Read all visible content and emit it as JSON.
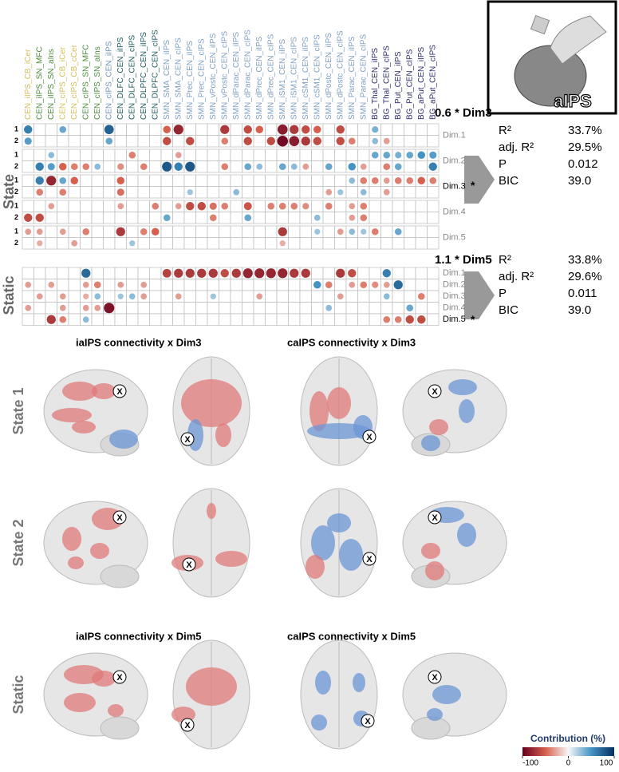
{
  "matrix": {
    "columns": [
      {
        "label": "CEN_iIPS_CB_iCer",
        "color": "#d1c05a"
      },
      {
        "label": "CEN_iIPS_SN_MFC",
        "color": "#4d8a3c"
      },
      {
        "label": "CEN_iIPS_SN_aIns",
        "color": "#4d8a3c"
      },
      {
        "label": "CEN_cIPS_CB_iCer",
        "color": "#d1c05a"
      },
      {
        "label": "CEN_cIPS_CB_cCer",
        "color": "#d1c05a"
      },
      {
        "label": "CEN_cIPS_SN_MFC",
        "color": "#4d8a3c"
      },
      {
        "label": "CEN_cIPS_SN_aIns",
        "color": "#4d8a3c"
      },
      {
        "label": "CEN_cIPS_CEN_iIPS",
        "color": "#6f93b4"
      },
      {
        "label": "CEN_DLFC_CEN_iIPS",
        "color": "#1f5c5c"
      },
      {
        "label": "CEN_DLFC_CEN_cIPS",
        "color": "#1f5c5c"
      },
      {
        "label": "CEN_DLPFC_CEN_iIPS",
        "color": "#1f5c5c"
      },
      {
        "label": "CEN_DLPFC_CEN_cIPS",
        "color": "#1f5c5c"
      },
      {
        "label": "SMN_SMA_CEN_iIPS",
        "color": "#7f9fc0"
      },
      {
        "label": "SMN_SMA_CEN_cIPS",
        "color": "#7f9fc0"
      },
      {
        "label": "SMN_Prec_CEN_iIPS",
        "color": "#7f9fc0"
      },
      {
        "label": "SMN_Prec_CEN_cIPS",
        "color": "#7f9fc0"
      },
      {
        "label": "SMN_vPostc_CEN_iIPS",
        "color": "#7f9fc0"
      },
      {
        "label": "SMN_vPostc_CEN_cIPS",
        "color": "#7f9fc0"
      },
      {
        "label": "SMN_dParac_CEN_iIPS",
        "color": "#7f9fc0"
      },
      {
        "label": "SMN_dParac_CEN_cIPS",
        "color": "#7f9fc0"
      },
      {
        "label": "SMN_dPrec_CEN_iIPS",
        "color": "#7f9fc0"
      },
      {
        "label": "SMN_dPrec_CEN_cIPS",
        "color": "#7f9fc0"
      },
      {
        "label": "SMN_iSM1_CEN_iIPS",
        "color": "#7f9fc0"
      },
      {
        "label": "SMN_iSM1_CEN_cIPS",
        "color": "#7f9fc0"
      },
      {
        "label": "SMN_cSM1_CEN_iIPS",
        "color": "#7f9fc0"
      },
      {
        "label": "SMN_cSM1_CEN_cIPS",
        "color": "#7f9fc0"
      },
      {
        "label": "SMN_dPostc_CEN_iIPS",
        "color": "#7f9fc0"
      },
      {
        "label": "SMN_dPostc_CEN_cIPS",
        "color": "#7f9fc0"
      },
      {
        "label": "SMN_Parac_CEN_iIPS",
        "color": "#7f9fc0"
      },
      {
        "label": "SMN_Parac_CEN_cIPS",
        "color": "#7f9fc0"
      },
      {
        "label": "BG_Thal_CEN_iIPS",
        "color": "#2b2b6b"
      },
      {
        "label": "BG_Thal_CEN_cIPS",
        "color": "#2b2b6b"
      },
      {
        "label": "BG_Put_CEN_iIPS",
        "color": "#2b2b6b"
      },
      {
        "label": "BG_Put_CEN_cIPS",
        "color": "#2b2b6b"
      },
      {
        "label": "BG_aPut_CEN_iIPS",
        "color": "#2b2b6b"
      },
      {
        "label": "BG_aPut_CEN_cIPS",
        "color": "#2b2b6b"
      }
    ],
    "state": {
      "label": "State",
      "dims": [
        {
          "name": "Dim.1",
          "rows": [
            {
              "label": "1",
              "cells": [
                [
                  0,
                  60
                ],
                [
                  3,
                  40
                ],
                [
                  7,
                  75
                ],
                [
                  12,
                  -50
                ],
                [
                  13,
                  -80
                ],
                [
                  17,
                  -70
                ],
                [
                  19,
                  -60
                ],
                [
                  20,
                  -50
                ],
                [
                  22,
                  -85
                ],
                [
                  23,
                  -70
                ],
                [
                  24,
                  -60
                ],
                [
                  25,
                  -50
                ],
                [
                  27,
                  -60
                ],
                [
                  30,
                  35
                ]
              ]
            },
            {
              "label": "2",
              "cells": [
                [
                  0,
                  45
                ],
                [
                  7,
                  40
                ],
                [
                  12,
                  -60
                ],
                [
                  14,
                  -60
                ],
                [
                  17,
                  -40
                ],
                [
                  19,
                  -60
                ],
                [
                  21,
                  -60
                ],
                [
                  22,
                  -95
                ],
                [
                  23,
                  -85
                ],
                [
                  24,
                  -70
                ],
                [
                  25,
                  -60
                ],
                [
                  27,
                  -60
                ],
                [
                  28,
                  -40
                ],
                [
                  30,
                  30
                ],
                [
                  31,
                  -30
                ]
              ]
            }
          ]
        },
        {
          "name": "Dim.2",
          "rows": [
            {
              "label": "1",
              "cells": [
                [
                  2,
                  30
                ],
                [
                  9,
                  -40
                ],
                [
                  13,
                  -30
                ],
                [
                  30,
                  40
                ],
                [
                  31,
                  40
                ],
                [
                  32,
                  35
                ],
                [
                  33,
                  40
                ],
                [
                  34,
                  50
                ],
                [
                  35,
                  45
                ]
              ]
            },
            {
              "label": "2",
              "cells": [
                [
                  1,
                  60
                ],
                [
                  2,
                  45
                ],
                [
                  3,
                  -50
                ],
                [
                  4,
                  -40
                ],
                [
                  5,
                  -40
                ],
                [
                  6,
                  30
                ],
                [
                  8,
                  -35
                ],
                [
                  10,
                  -40
                ],
                [
                  12,
                  80
                ],
                [
                  13,
                  60
                ],
                [
                  14,
                  80
                ],
                [
                  17,
                  -40
                ],
                [
                  19,
                  40
                ],
                [
                  20,
                  30
                ],
                [
                  22,
                  40
                ],
                [
                  23,
                  30
                ],
                [
                  24,
                  -30
                ],
                [
                  26,
                  40
                ],
                [
                  28,
                  50
                ],
                [
                  29,
                  -30
                ],
                [
                  31,
                  -40
                ],
                [
                  32,
                  40
                ],
                [
                  35,
                  60
                ]
              ]
            }
          ]
        },
        {
          "name": "Dim.3",
          "marker": "*",
          "rows": [
            {
              "label": "1",
              "cells": [
                [
                  1,
                  60
                ],
                [
                  2,
                  -80
                ],
                [
                  3,
                  40
                ],
                [
                  4,
                  -50
                ],
                [
                  8,
                  -50
                ],
                [
                  28,
                  30
                ],
                [
                  29,
                  -40
                ],
                [
                  30,
                  -40
                ],
                [
                  31,
                  -30
                ],
                [
                  32,
                  -40
                ],
                [
                  33,
                  -40
                ],
                [
                  34,
                  -50
                ],
                [
                  35,
                  -40
                ]
              ]
            },
            {
              "label": "2",
              "cells": [
                [
                  1,
                  -40
                ],
                [
                  3,
                  -40
                ],
                [
                  8,
                  -45
                ],
                [
                  14,
                  25
                ],
                [
                  18,
                  30
                ],
                [
                  26,
                  -30
                ],
                [
                  27,
                  25
                ],
                [
                  29,
                  30
                ],
                [
                  31,
                  -30
                ]
              ]
            }
          ]
        },
        {
          "name": "Dim.4",
          "rows": [
            {
              "label": "1",
              "cells": [
                [
                  2,
                  -30
                ],
                [
                  8,
                  -30
                ],
                [
                  11,
                  -40
                ],
                [
                  13,
                  -30
                ],
                [
                  14,
                  -60
                ],
                [
                  15,
                  -60
                ],
                [
                  16,
                  -45
                ],
                [
                  17,
                  -40
                ],
                [
                  19,
                  -55
                ],
                [
                  21,
                  -40
                ],
                [
                  22,
                  -40
                ],
                [
                  23,
                  -40
                ],
                [
                  24,
                  -35
                ],
                [
                  26,
                  -40
                ],
                [
                  28,
                  -30
                ],
                [
                  29,
                  -40
                ]
              ]
            },
            {
              "label": "2",
              "cells": [
                [
                  0,
                  -60
                ],
                [
                  1,
                  -60
                ],
                [
                  12,
                  40
                ],
                [
                  16,
                  -40
                ],
                [
                  19,
                  40
                ],
                [
                  25,
                  30
                ],
                [
                  28,
                  -30
                ],
                [
                  29,
                  -40
                ]
              ]
            }
          ]
        },
        {
          "name": "Dim.5",
          "rows": [
            {
              "label": "1",
              "cells": [
                [
                  0,
                  -30
                ],
                [
                  1,
                  -30
                ],
                [
                  3,
                  -30
                ],
                [
                  5,
                  -40
                ],
                [
                  8,
                  -70
                ],
                [
                  10,
                  -40
                ],
                [
                  11,
                  -50
                ],
                [
                  22,
                  -70
                ],
                [
                  25,
                  25
                ],
                [
                  27,
                  -30
                ],
                [
                  28,
                  30
                ],
                [
                  29,
                  25
                ],
                [
                  30,
                  -40
                ],
                [
                  32,
                  40
                ]
              ]
            },
            {
              "label": "2",
              "cells": [
                [
                  1,
                  -25
                ],
                [
                  4,
                  -30
                ],
                [
                  9,
                  25
                ],
                [
                  22,
                  -25
                ]
              ]
            }
          ]
        }
      ]
    },
    "static": {
      "label": "Static",
      "dims": [
        {
          "name": "Dim.1",
          "cells": [
            [
              5,
              70
            ],
            [
              12,
              -65
            ],
            [
              13,
              -70
            ],
            [
              14,
              -70
            ],
            [
              15,
              -70
            ],
            [
              16,
              -70
            ],
            [
              17,
              -60
            ],
            [
              18,
              -70
            ],
            [
              19,
              -80
            ],
            [
              20,
              -80
            ],
            [
              21,
              -80
            ],
            [
              22,
              -80
            ],
            [
              23,
              -70
            ],
            [
              24,
              -70
            ],
            [
              27,
              -70
            ],
            [
              28,
              -60
            ],
            [
              31,
              60
            ]
          ]
        },
        {
          "name": "Dim.2",
          "cells": [
            [
              0,
              -30
            ],
            [
              2,
              -30
            ],
            [
              5,
              -30
            ],
            [
              6,
              -40
            ],
            [
              8,
              -30
            ],
            [
              10,
              -30
            ],
            [
              25,
              50
            ],
            [
              26,
              -40
            ],
            [
              28,
              -30
            ],
            [
              29,
              -40
            ],
            [
              30,
              -35
            ],
            [
              31,
              -30
            ],
            [
              32,
              70
            ]
          ]
        },
        {
          "name": "Dim.3",
          "cells": [
            [
              1,
              -30
            ],
            [
              3,
              -30
            ],
            [
              5,
              -25
            ],
            [
              6,
              30
            ],
            [
              8,
              25
            ],
            [
              9,
              30
            ],
            [
              10,
              -30
            ],
            [
              13,
              -30
            ],
            [
              16,
              25
            ],
            [
              20,
              -30
            ],
            [
              27,
              -30
            ],
            [
              31,
              30
            ],
            [
              34,
              -40
            ]
          ]
        },
        {
          "name": "Dim.4",
          "cells": [
            [
              0,
              -30
            ],
            [
              3,
              -30
            ],
            [
              5,
              -30
            ],
            [
              6,
              -30
            ],
            [
              7,
              -90
            ],
            [
              26,
              30
            ],
            [
              33,
              40
            ]
          ]
        },
        {
          "name": "Dim.5",
          "marker": "*",
          "cells": [
            [
              2,
              -70
            ],
            [
              3,
              -40
            ],
            [
              5,
              30
            ],
            [
              31,
              -40
            ],
            [
              32,
              -40
            ],
            [
              33,
              -60
            ],
            [
              34,
              -60
            ]
          ]
        }
      ]
    }
  },
  "inset": {
    "label": "aIPS"
  },
  "models": [
    {
      "formula": "0.6 * Dim3",
      "stats": [
        {
          "label": "R²",
          "value": "33.7%"
        },
        {
          "label": "adj. R²",
          "value": "29.5%"
        },
        {
          "label": "P",
          "value": "0.012"
        },
        {
          "label": "BIC",
          "value": "39.0"
        }
      ]
    },
    {
      "formula": "1.1 * Dim5",
      "stats": [
        {
          "label": "R²",
          "value": "33.8%"
        },
        {
          "label": "adj. R²",
          "value": "29.6%"
        },
        {
          "label": "P",
          "value": "0.011"
        },
        {
          "label": "BIC",
          "value": "39.0"
        }
      ]
    }
  ],
  "brains": {
    "marker": "X",
    "titles": [
      "iaIPS connectivity x Dim3",
      "caIPS connectivity x Dim3",
      "iaIPS connectivity x Dim5",
      "caIPS connectivity x Dim5"
    ],
    "rows": [
      "State 1",
      "State 2",
      "Static"
    ]
  },
  "colorbar": {
    "title": "Contribution (%)",
    "ticks": [
      -100,
      0,
      100
    ]
  }
}
